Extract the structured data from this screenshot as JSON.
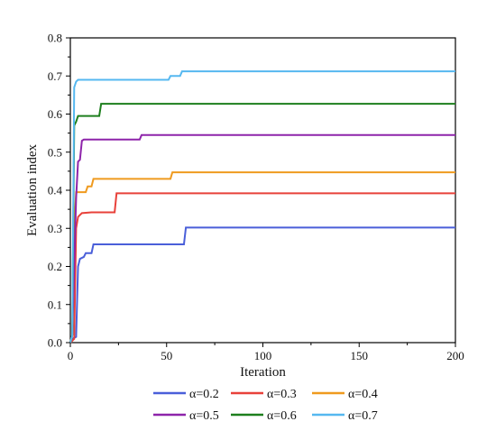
{
  "chart_data": {
    "type": "line",
    "title": "",
    "xlabel": "Iteration",
    "ylabel": "Evaluation index",
    "xlim": [
      0,
      200
    ],
    "ylim": [
      0,
      0.8
    ],
    "x_ticks": [
      0,
      50,
      100,
      150,
      200
    ],
    "y_ticks": [
      0.0,
      0.1,
      0.2,
      0.3,
      0.4,
      0.5,
      0.6,
      0.7,
      0.8
    ],
    "x_tick_labels": [
      "0",
      "50",
      "100",
      "150",
      "200"
    ],
    "y_tick_labels": [
      "0.0",
      "0.1",
      "0.2",
      "0.3",
      "0.4",
      "0.5",
      "0.6",
      "0.7",
      "0.8"
    ],
    "grid": false,
    "legend_position": "bottom",
    "series": [
      {
        "name": "α=0.2",
        "color": "#4a5fd9",
        "points": [
          [
            0,
            0.0
          ],
          [
            1,
            0.01
          ],
          [
            3,
            0.015
          ],
          [
            4,
            0.2
          ],
          [
            5,
            0.22
          ],
          [
            7,
            0.225
          ],
          [
            8,
            0.235
          ],
          [
            11,
            0.235
          ],
          [
            12,
            0.258
          ],
          [
            59,
            0.258
          ],
          [
            60,
            0.302
          ],
          [
            200,
            0.302
          ]
        ]
      },
      {
        "name": "α=0.3",
        "color": "#e8413a",
        "points": [
          [
            0,
            0.0
          ],
          [
            2,
            0.01
          ],
          [
            3,
            0.3
          ],
          [
            4,
            0.33
          ],
          [
            6,
            0.34
          ],
          [
            11,
            0.342
          ],
          [
            23,
            0.342
          ],
          [
            24,
            0.392
          ],
          [
            200,
            0.392
          ]
        ]
      },
      {
        "name": "α=0.4",
        "color": "#ef9a1f",
        "points": [
          [
            0,
            0.0
          ],
          [
            1,
            0.02
          ],
          [
            2,
            0.3
          ],
          [
            3,
            0.395
          ],
          [
            8,
            0.395
          ],
          [
            9,
            0.41
          ],
          [
            11,
            0.41
          ],
          [
            12,
            0.43
          ],
          [
            52,
            0.43
          ],
          [
            53,
            0.447
          ],
          [
            200,
            0.447
          ]
        ]
      },
      {
        "name": "α=0.5",
        "color": "#8e24aa",
        "points": [
          [
            0,
            0.0
          ],
          [
            1,
            0.02
          ],
          [
            3,
            0.38
          ],
          [
            4,
            0.475
          ],
          [
            5,
            0.48
          ],
          [
            6,
            0.53
          ],
          [
            7,
            0.533
          ],
          [
            36,
            0.533
          ],
          [
            37,
            0.545
          ],
          [
            200,
            0.545
          ]
        ]
      },
      {
        "name": "α=0.6",
        "color": "#1d7f1d",
        "points": [
          [
            0,
            0.0
          ],
          [
            1,
            0.02
          ],
          [
            2,
            0.57
          ],
          [
            3,
            0.58
          ],
          [
            4,
            0.595
          ],
          [
            15,
            0.595
          ],
          [
            16,
            0.627
          ],
          [
            200,
            0.627
          ]
        ]
      },
      {
        "name": "α=0.7",
        "color": "#56b8f0",
        "points": [
          [
            0,
            0.0
          ],
          [
            1,
            0.02
          ],
          [
            2,
            0.67
          ],
          [
            3,
            0.685
          ],
          [
            4,
            0.69
          ],
          [
            51,
            0.69
          ],
          [
            52,
            0.7
          ],
          [
            57,
            0.7
          ],
          [
            58,
            0.712
          ],
          [
            200,
            0.712
          ]
        ]
      }
    ]
  }
}
